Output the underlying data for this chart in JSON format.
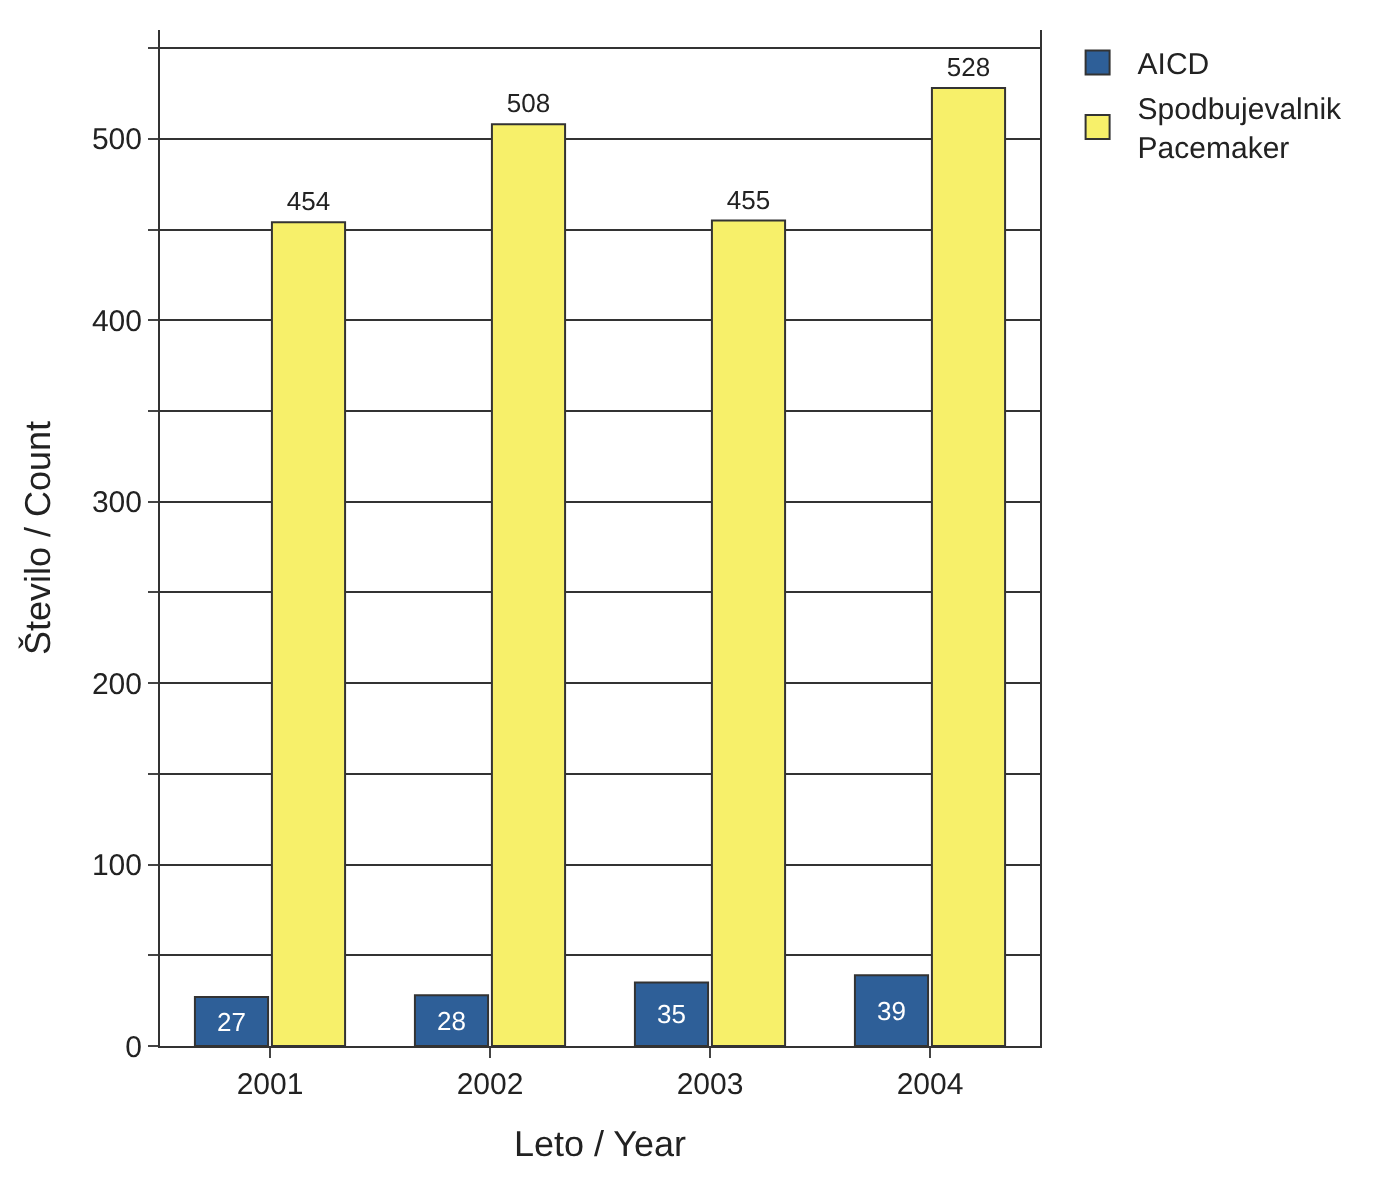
{
  "chart_data": {
    "type": "bar",
    "xlabel": "Leto / Year",
    "ylabel": "Število / Count",
    "categories": [
      "2001",
      "2002",
      "2003",
      "2004"
    ],
    "series": [
      {
        "name": "AICD",
        "color": "#2e5f98",
        "values": [
          27,
          28,
          35,
          39
        ]
      },
      {
        "name": "Spodbujevalnik\nPacemaker",
        "color": "#f7f06a",
        "values": [
          454,
          508,
          455,
          528
        ]
      }
    ],
    "ylim": [
      0,
      560
    ],
    "yticks": [
      0,
      {
        "value": 50,
        "label": null
      },
      100,
      {
        "value": 150,
        "label": null
      },
      200,
      {
        "value": 250,
        "label": null
      },
      300,
      {
        "value": 350,
        "label": null
      },
      400,
      {
        "value": 450,
        "label": null
      },
      500,
      {
        "value": 550,
        "label": null
      }
    ],
    "grid": "y",
    "legend": "top right",
    "data_labels": true
  }
}
